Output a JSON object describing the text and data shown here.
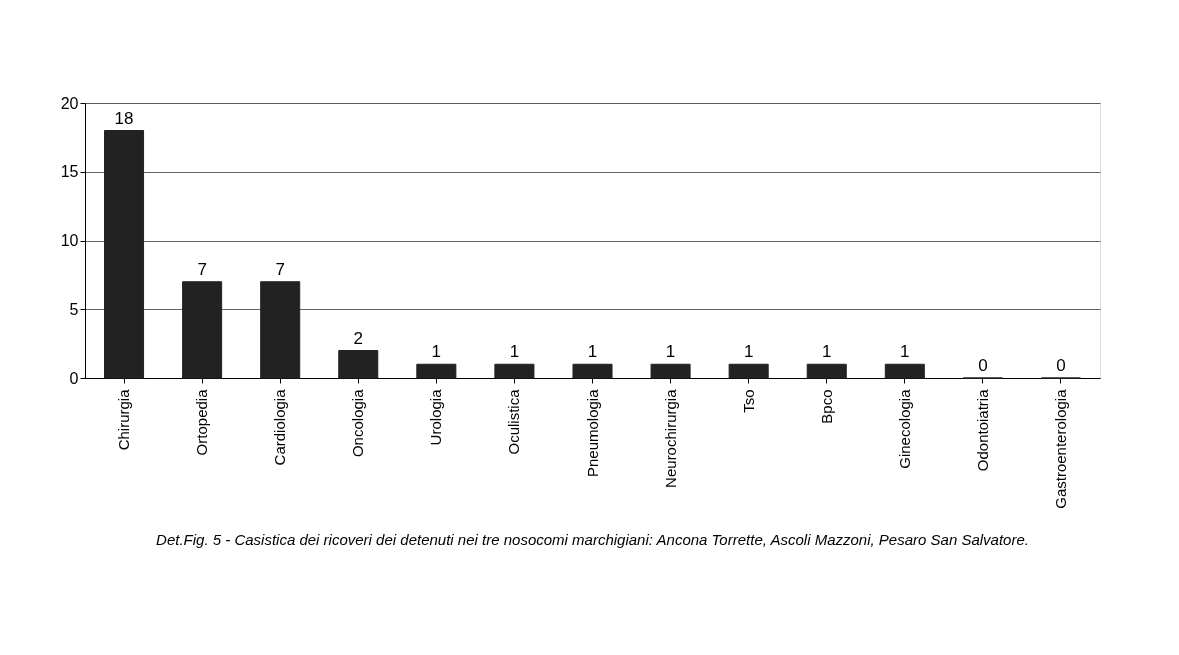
{
  "chart_data": {
    "type": "bar",
    "categories": [
      "Chirurgia",
      "Ortopedia",
      "Cardiologia",
      "Oncologia",
      "Urologia",
      "Oculistica",
      "Pneumologia",
      "Neurochirurgia",
      "Tso",
      "Bpco",
      "Ginecologia",
      "Odontoiatria",
      "Gastroenterologia"
    ],
    "values": [
      18,
      7,
      7,
      2,
      1,
      1,
      1,
      1,
      1,
      1,
      1,
      0,
      0
    ],
    "color": "#222222",
    "ylim": [
      0,
      20
    ],
    "yticks": [
      0,
      5,
      10,
      15,
      20
    ],
    "grid": "y",
    "data_labels": true,
    "annotations": [
      "Det.Fig. 5 - Casistica dei ricoveri dei detenuti nei tre nosocomi marchigiani: Ancona Torrette, Ascoli Mazzoni, Pesaro San Salvatore."
    ]
  }
}
